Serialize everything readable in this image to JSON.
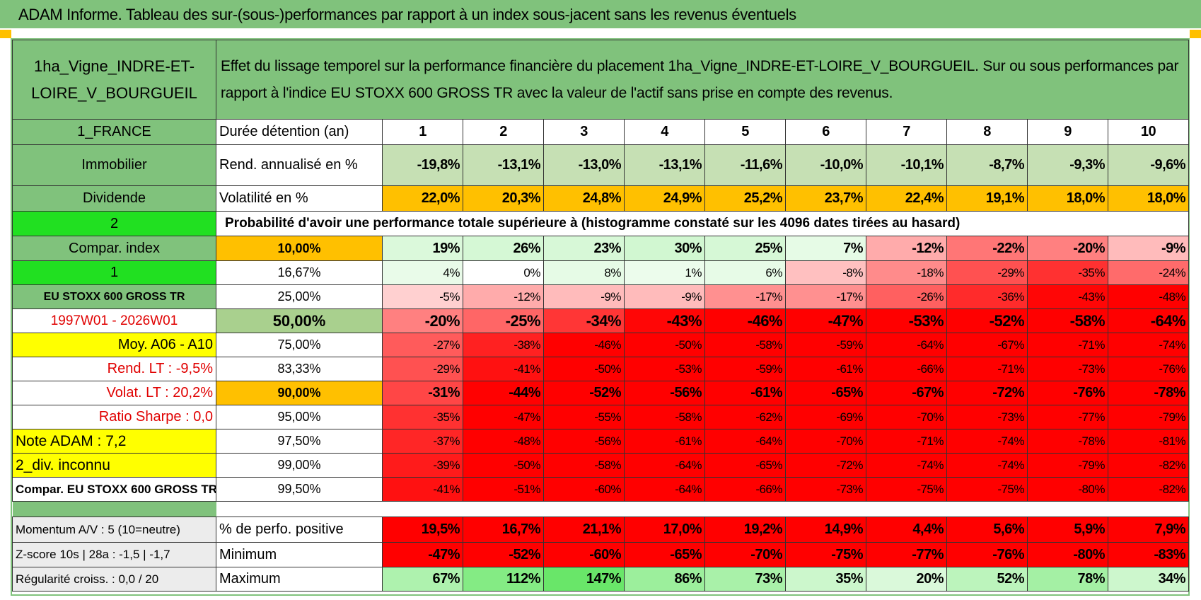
{
  "header": {
    "title": "ADAM Informe. Tableau des sur-(sous-)performances par rapport à un index sous-jacent sans les revenus éventuels",
    "asset": "1ha_Vigne_INDRE-ET-LOIRE_V_BOURGUEIL",
    "description": "Effet du lissage temporel sur la performance financière du placement 1ha_Vigne_INDRE-ET-LOIRE_V_BOURGUEIL. Sur ou sous performances par rapport à l'indice EU STOXX 600 GROSS TR avec la valeur de l'actif sans prise en compte des revenus."
  },
  "table": {
    "rows": [
      [
        "1_FRANCE",
        "Durée détention (an)",
        "1",
        "2",
        "3",
        "4",
        "5",
        "6",
        "7",
        "8",
        "9",
        "10"
      ],
      [
        "Immobilier",
        "Rend. annualisé en %",
        "-19,8%",
        "-13,1%",
        "-13,0%",
        "-13,1%",
        "-11,6%",
        "-10,0%",
        "-10,1%",
        "-8,7%",
        "-9,3%",
        "-9,6%"
      ],
      [
        "Dividende",
        "Volatilité en %",
        "22,0%",
        "20,3%",
        "24,8%",
        "24,9%",
        "25,2%",
        "23,7%",
        "22,4%",
        "19,1%",
        "18,0%",
        "18,0%"
      ],
      [
        "2",
        "Probabilité d'avoir une performance totale supérieure à (histogramme constaté sur les 4096 dates tirées au hasard)"
      ],
      [
        "Compar. index",
        "10,00%",
        "19%",
        "26%",
        "23%",
        "30%",
        "25%",
        "7%",
        "-12%",
        "-22%",
        "-20%",
        "-9%"
      ],
      [
        "1",
        "16,67%",
        "4%",
        "0%",
        "8%",
        "1%",
        "6%",
        "-8%",
        "-18%",
        "-29%",
        "-35%",
        "-24%"
      ],
      [
        "EU STOXX 600 GROSS TR",
        "25,00%",
        "-5%",
        "-12%",
        "-9%",
        "-9%",
        "-17%",
        "-17%",
        "-26%",
        "-36%",
        "-43%",
        "-48%"
      ],
      [
        "1997W01 - 2026W01",
        "50,00%",
        "-20%",
        "-25%",
        "-34%",
        "-43%",
        "-46%",
        "-47%",
        "-53%",
        "-52%",
        "-58%",
        "-64%"
      ],
      [
        "Moy. A06 - A10",
        "75,00%",
        "-27%",
        "-38%",
        "-46%",
        "-50%",
        "-58%",
        "-59%",
        "-64%",
        "-67%",
        "-71%",
        "-74%"
      ],
      [
        "Rend. LT :    -9,5%",
        "83,33%",
        "-29%",
        "-41%",
        "-50%",
        "-53%",
        "-59%",
        "-61%",
        "-66%",
        "-71%",
        "-73%",
        "-76%"
      ],
      [
        "Volat. LT :    20,2%",
        "90,00%",
        "-31%",
        "-44%",
        "-52%",
        "-56%",
        "-61%",
        "-65%",
        "-67%",
        "-72%",
        "-76%",
        "-78%"
      ],
      [
        "Ratio Sharpe :     0,0",
        "95,00%",
        "-35%",
        "-47%",
        "-55%",
        "-58%",
        "-62%",
        "-69%",
        "-70%",
        "-73%",
        "-77%",
        "-79%"
      ],
      [
        "Note ADAM : 7,2",
        "97,50%",
        "-37%",
        "-48%",
        "-56%",
        "-61%",
        "-64%",
        "-70%",
        "-71%",
        "-74%",
        "-78%",
        "-81%"
      ],
      [
        "2_div. inconnu",
        "99,00%",
        "-39%",
        "-50%",
        "-58%",
        "-64%",
        "-65%",
        "-72%",
        "-74%",
        "-74%",
        "-79%",
        "-82%"
      ],
      [
        "Compar. EU STOXX 600 GROSS TR",
        "99,50%",
        "-41%",
        "-51%",
        "-60%",
        "-64%",
        "-66%",
        "-73%",
        "-75%",
        "-75%",
        "-80%",
        "-82%"
      ],
      [
        "Momentum A/V : 5 (10=neutre)",
        "% de perfo. positive",
        "19,5%",
        "16,7%",
        "21,1%",
        "17,0%",
        "19,2%",
        "14,9%",
        "4,4%",
        "5,6%",
        "5,9%",
        "7,9%"
      ],
      [
        "Z-score 10s | 28a : -1,5 | -1,7",
        "Minimum",
        "-47%",
        "-52%",
        "-60%",
        "-65%",
        "-70%",
        "-75%",
        "-77%",
        "-76%",
        "-80%",
        "-83%"
      ],
      [
        "Régularité croiss. : 0,0 / 20",
        "Maximum",
        "67%",
        "112%",
        "147%",
        "86%",
        "73%",
        "35%",
        "20%",
        "52%",
        "78%",
        "34%"
      ]
    ]
  }
}
